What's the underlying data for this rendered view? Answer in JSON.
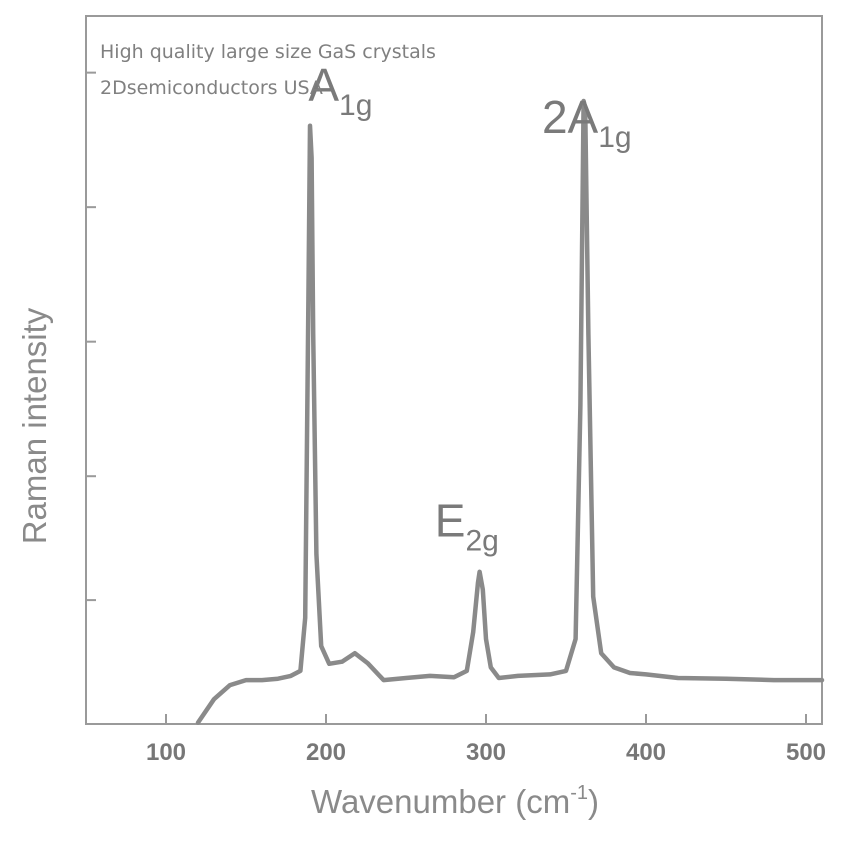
{
  "header": {
    "line1": "High quality large size GaS crystals",
    "line2": "2Dsemiconductors USA"
  },
  "chart_data": {
    "type": "line",
    "xlabel_base": "Wavenumber (cm",
    "xlabel_sup": "-1",
    "xlabel_end": ")",
    "ylabel": "Raman intensity",
    "xlim": [
      50,
      510
    ],
    "ylim": [
      0,
      100
    ],
    "x_ticks": [
      100,
      200,
      300,
      400,
      500
    ],
    "y_ticks_unlabeled": [
      17.5,
      35,
      54,
      73,
      92
    ],
    "grid": false,
    "line_color": "#8a8a8a",
    "annotations": [
      {
        "main": "A",
        "sub": "1g",
        "x": 209,
        "y": 88
      },
      {
        "main": "E",
        "sub": "2g",
        "x": 288,
        "y": 26.5
      },
      {
        "main": "2A",
        "sub": "1g",
        "x": 363,
        "y": 83.5
      }
    ],
    "series": [
      {
        "x": [
          120,
          130,
          140,
          150,
          160,
          170,
          178,
          184,
          187,
          189,
          190,
          191,
          192,
          194,
          197,
          202,
          210,
          218,
          226,
          236,
          250,
          265,
          280,
          288,
          292,
          295,
          296,
          298,
          300,
          303,
          308,
          320,
          340,
          350,
          356,
          359,
          361,
          362,
          364,
          367,
          372,
          380,
          390,
          400,
          420,
          450,
          480,
          510
        ],
        "y": [
          0.2,
          3.5,
          5.5,
          6.2,
          6.2,
          6.4,
          6.8,
          7.5,
          15,
          60,
          84.5,
          80,
          55,
          24,
          11,
          8.5,
          8.8,
          10,
          8.6,
          6.2,
          6.5,
          6.8,
          6.6,
          7.5,
          13,
          20,
          21.5,
          19,
          12,
          8,
          6.5,
          6.8,
          7,
          7.5,
          12,
          45,
          88,
          87,
          55,
          18,
          10,
          8,
          7.2,
          7,
          6.5,
          6.4,
          6.2,
          6.2
        ]
      }
    ]
  }
}
